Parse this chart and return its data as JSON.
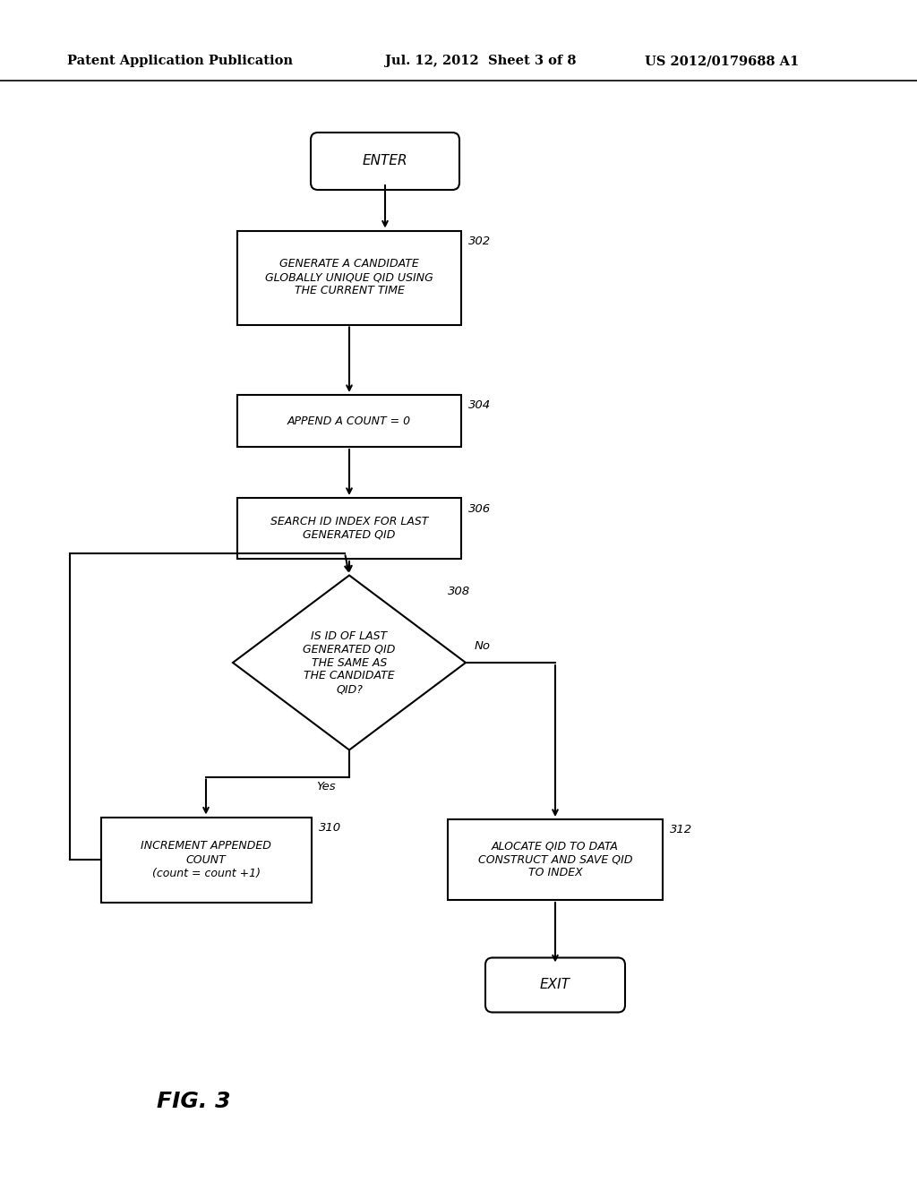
{
  "bg_color": "#ffffff",
  "header_left": "Patent Application Publication",
  "header_center": "Jul. 12, 2012  Sheet 3 of 8",
  "header_right": "US 2012/0179688 A1",
  "fig_label": "FIG. 3",
  "enter_label": "ENTER",
  "exit_label": "EXIT",
  "n302_label": "GENERATE A CANDIDATE\nGLOBALLY UNIQUE QID USING\nTHE CURRENT TIME",
  "n304_label": "APPEND A COUNT = 0",
  "n306_label": "SEARCH ID INDEX FOR LAST\nGENERATED QID",
  "n308_label": "IS ID OF LAST\nGENERATED QID\nTHE SAME AS\nTHE CANDIDATE\nQID?",
  "n310_label": "INCREMENT APPENDED\nCOUNT\n(count = count +1)",
  "n312_label": "ALOCATE QID TO DATA\nCONSTRUCT AND SAVE QID\nTO INDEX",
  "ref302": "302",
  "ref304": "304",
  "ref306": "306",
  "ref308": "308",
  "ref310": "310",
  "ref312": "312",
  "label_yes": "Yes",
  "label_no": "No"
}
